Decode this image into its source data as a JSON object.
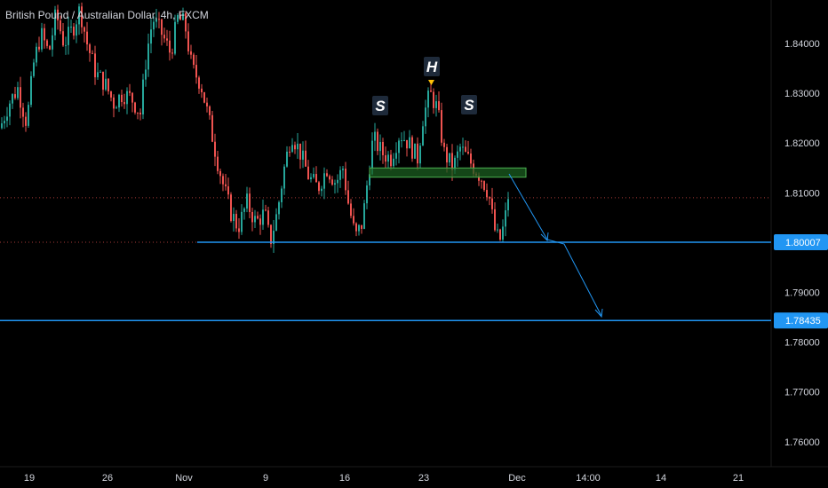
{
  "header": {
    "symbol_title": "British Pound / Australian Dollar, 4h, FXCM"
  },
  "chart_data": {
    "type": "candlestick",
    "ylim": [
      1.7555,
      1.8475
    ],
    "x_ticks": [
      "19",
      "26",
      "Nov",
      "9",
      "16",
      "23",
      "Dec",
      "14:00",
      "14",
      "21"
    ],
    "y_ticks": [
      "1.84000",
      "1.83000",
      "1.82000",
      "1.81000",
      "1.79000",
      "1.78000",
      "1.77000",
      "1.76000"
    ],
    "price_labels": [
      {
        "text": "1.80007",
        "value": 1.80007
      },
      {
        "text": "1.78435",
        "value": 1.78435
      }
    ],
    "annotations": [
      {
        "text": "S"
      },
      {
        "text": "H"
      },
      {
        "text": "S"
      }
    ],
    "neckline_zone": {
      "low": 1.8135,
      "high": 1.815
    },
    "support_level": 1.80007,
    "target_level": 1.78435,
    "current_price_line": 1.809,
    "colors": {
      "background": "#000000",
      "up": "#26a69a",
      "down": "#ef5350",
      "level_line": "#2196f3",
      "zone_fill": "#1b5e20",
      "zone_border": "#4caf50",
      "label_bg": "#2196f3",
      "axis_text": "#d1d4dc",
      "annotation_bg": "#1e2a3a",
      "dotted": "#ef5350"
    },
    "price_path": [
      {
        "t": 0,
        "p": 1.823
      },
      {
        "t": 10,
        "p": 1.828
      },
      {
        "t": 20,
        "p": 1.831
      },
      {
        "t": 30,
        "p": 1.824
      },
      {
        "t": 38,
        "p": 1.836
      },
      {
        "t": 46,
        "p": 1.842
      },
      {
        "t": 55,
        "p": 1.838
      },
      {
        "t": 63,
        "p": 1.846
      },
      {
        "t": 72,
        "p": 1.84
      },
      {
        "t": 82,
        "p": 1.843
      },
      {
        "t": 90,
        "p": 1.847
      },
      {
        "t": 98,
        "p": 1.84
      },
      {
        "t": 108,
        "p": 1.834
      },
      {
        "t": 118,
        "p": 1.832
      },
      {
        "t": 128,
        "p": 1.828
      },
      {
        "t": 138,
        "p": 1.83
      },
      {
        "t": 148,
        "p": 1.829
      },
      {
        "t": 158,
        "p": 1.826
      },
      {
        "t": 165,
        "p": 1.838
      },
      {
        "t": 172,
        "p": 1.845
      },
      {
        "t": 182,
        "p": 1.842
      },
      {
        "t": 192,
        "p": 1.838
      },
      {
        "t": 200,
        "p": 1.845
      },
      {
        "t": 208,
        "p": 1.844
      },
      {
        "t": 216,
        "p": 1.835
      },
      {
        "t": 226,
        "p": 1.832
      },
      {
        "t": 236,
        "p": 1.824
      },
      {
        "t": 244,
        "p": 1.817
      },
      {
        "t": 252,
        "p": 1.811
      },
      {
        "t": 260,
        "p": 1.806
      },
      {
        "t": 268,
        "p": 1.803
      },
      {
        "t": 278,
        "p": 1.808
      },
      {
        "t": 288,
        "p": 1.804
      },
      {
        "t": 298,
        "p": 1.806
      },
      {
        "t": 304,
        "p": 1.8
      },
      {
        "t": 312,
        "p": 1.806
      },
      {
        "t": 320,
        "p": 1.815
      },
      {
        "t": 328,
        "p": 1.822
      },
      {
        "t": 338,
        "p": 1.818
      },
      {
        "t": 348,
        "p": 1.813
      },
      {
        "t": 358,
        "p": 1.811
      },
      {
        "t": 368,
        "p": 1.815
      },
      {
        "t": 378,
        "p": 1.812
      },
      {
        "t": 386,
        "p": 1.815
      },
      {
        "t": 392,
        "p": 1.808
      },
      {
        "t": 400,
        "p": 1.801
      },
      {
        "t": 408,
        "p": 1.804
      },
      {
        "t": 414,
        "p": 1.813
      },
      {
        "t": 420,
        "p": 1.821
      },
      {
        "t": 430,
        "p": 1.818
      },
      {
        "t": 440,
        "p": 1.817
      },
      {
        "t": 450,
        "p": 1.822
      },
      {
        "t": 460,
        "p": 1.82
      },
      {
        "t": 470,
        "p": 1.817
      },
      {
        "t": 476,
        "p": 1.825
      },
      {
        "t": 484,
        "p": 1.83
      },
      {
        "t": 492,
        "p": 1.827
      },
      {
        "t": 500,
        "p": 1.818
      },
      {
        "t": 510,
        "p": 1.815
      },
      {
        "t": 518,
        "p": 1.819
      },
      {
        "t": 526,
        "p": 1.817
      },
      {
        "t": 534,
        "p": 1.815
      },
      {
        "t": 542,
        "p": 1.813
      },
      {
        "t": 550,
        "p": 1.81
      },
      {
        "t": 556,
        "p": 1.803
      },
      {
        "t": 562,
        "p": 1.8
      },
      {
        "t": 568,
        "p": 1.804
      },
      {
        "t": 574,
        "p": 1.812
      }
    ]
  }
}
